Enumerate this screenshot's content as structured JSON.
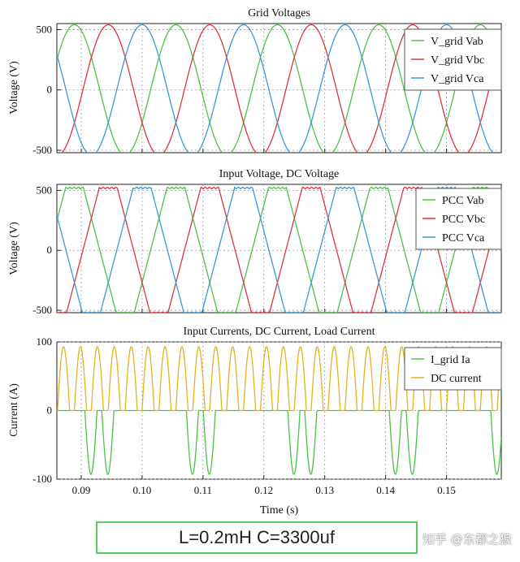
{
  "chart_data": [
    {
      "type": "line",
      "title": "Grid Voltages",
      "xlabel": "",
      "ylabel": "Voltage (V)",
      "xlim": [
        0.086,
        0.159
      ],
      "ylim": [
        -520,
        550
      ],
      "yticks": [
        "500",
        "0",
        "-500"
      ],
      "ytick_values": [
        500,
        0,
        -500
      ],
      "grid": true,
      "legend_position": "top-right",
      "series": [
        {
          "name": "V_grid Vab",
          "color": "#4dc247",
          "model": "sine",
          "amplitude": 540,
          "frequency_hz": 60,
          "phase_deg": -30
        },
        {
          "name": "V_grid Vbc",
          "color": "#e0343f",
          "model": "sine",
          "amplitude": 540,
          "frequency_hz": 60,
          "phase_deg": -150
        },
        {
          "name": "V_grid Vca",
          "color": "#3a9ad9",
          "model": "sine",
          "amplitude": 540,
          "frequency_hz": 60,
          "phase_deg": 90
        }
      ]
    },
    {
      "type": "line",
      "title": "Input Voltage, DC Voltage",
      "xlabel": "",
      "ylabel": "Voltage (V)",
      "xlim": [
        0.086,
        0.159
      ],
      "ylim": [
        -520,
        550
      ],
      "yticks": [
        "500",
        "0",
        "-500"
      ],
      "ytick_values": [
        500,
        0,
        -500
      ],
      "grid": true,
      "legend_position": "top-right",
      "series": [
        {
          "name": "PCC Vab",
          "color": "#4dc247",
          "model": "trapezoid",
          "amplitude": 520,
          "frequency_hz": 60,
          "phase_deg": -30
        },
        {
          "name": "PCC Vbc",
          "color": "#e0343f",
          "model": "trapezoid",
          "amplitude": 520,
          "frequency_hz": 60,
          "phase_deg": -150
        },
        {
          "name": "PCC Vca",
          "color": "#3a9ad9",
          "model": "trapezoid",
          "amplitude": 520,
          "frequency_hz": 60,
          "phase_deg": 90
        }
      ]
    },
    {
      "type": "line",
      "title": "Input Currents, DC Current, Load Current",
      "xlabel": "Time (s)",
      "ylabel": "Current (A)",
      "xlim": [
        0.086,
        0.159
      ],
      "ylim": [
        -100,
        100
      ],
      "yticks": [
        "100",
        "0",
        "-100"
      ],
      "ytick_values": [
        100,
        0,
        -100
      ],
      "xticks": [
        "0.09",
        "0.10",
        "0.11",
        "0.12",
        "0.13",
        "0.14",
        "0.15"
      ],
      "xtick_values": [
        0.09,
        0.1,
        0.11,
        0.12,
        0.13,
        0.14,
        0.15
      ],
      "grid": true,
      "legend_position": "top-right",
      "series": [
        {
          "name": "I_grid Ia",
          "color": "#4dc247",
          "model": "pulse_pairs",
          "amplitude": 93
        },
        {
          "name": "DC current",
          "color": "#e3b221",
          "model": "pulse_train",
          "amplitude": 93
        }
      ]
    }
  ],
  "caption": "L=0.2mH C=3300uf",
  "watermark": "知乎 @东都之狼"
}
